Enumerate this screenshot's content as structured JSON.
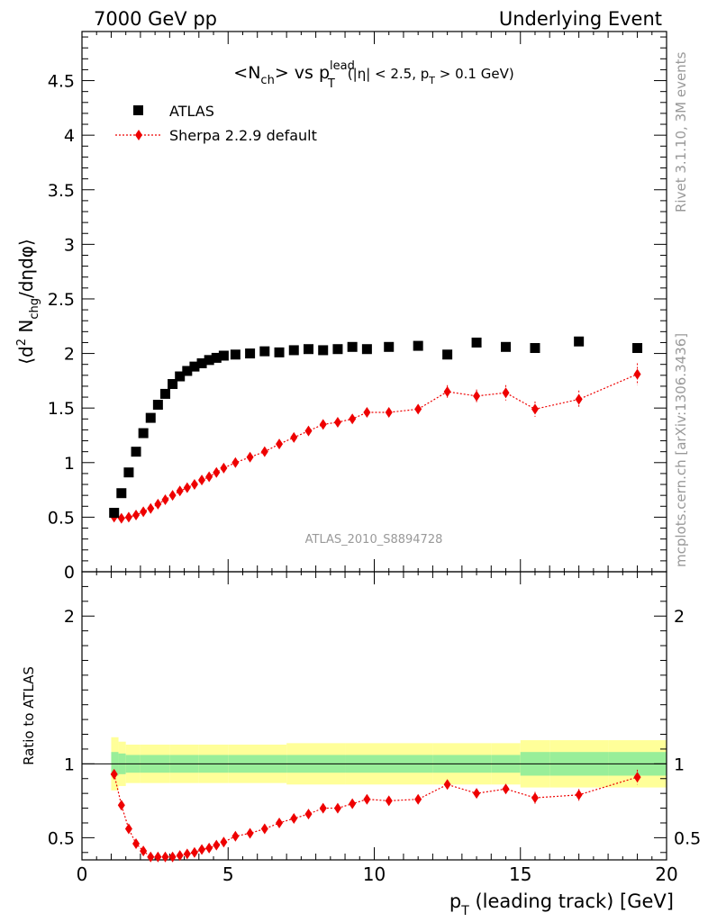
{
  "header": {
    "left": "7000 GeV pp",
    "right": "Underlying Event"
  },
  "side_text": {
    "rivet": "Rivet 3.1.10,  3M events",
    "mcplots": "mcplots.cern.ch [arXiv:1306.3436]"
  },
  "watermark": "ATLAS_2010_S8894728",
  "title": {
    "part1": "<N",
    "sub1": "ch",
    "part2": "> vs p",
    "sup2": "lead",
    "sub2": "T",
    "part3": "(|η| < 2.5, p",
    "sub3": "T",
    "part4": " > 0.1 GeV)"
  },
  "ylabel_main": {
    "p1": "⟨d",
    "sup": "2",
    "p2": " N",
    "sub": "chg",
    "p3": "/dηdφ⟩"
  },
  "ylabel_ratio": "Ratio to ATLAS",
  "xlabel": {
    "p1": "p",
    "sub": "T",
    "p2": " (leading track) [GeV]"
  },
  "legend": {
    "atlas": "ATLAS",
    "sherpa": "Sherpa 2.2.9 default"
  },
  "colors": {
    "data": "#000000",
    "mc": "#ee0000",
    "band_inner": "#99ee99",
    "band_outer": "#ffff99"
  },
  "chart_data": {
    "type": "scatter",
    "x_range": [
      0,
      20
    ],
    "x_ticks": [
      0,
      5,
      10,
      15,
      20
    ],
    "main": {
      "ylim": [
        0,
        4.95
      ],
      "y_ticks": [
        0,
        0.5,
        1,
        1.5,
        2,
        2.5,
        3,
        3.5,
        4,
        4.5
      ],
      "y_tick_labels": [
        "0",
        "0.5",
        "1",
        "1.5",
        "2",
        "2.5",
        "3",
        "3.5",
        "4",
        "4.5"
      ]
    },
    "ratio": {
      "ylim": [
        0.35,
        2.3
      ],
      "y_ticks": [
        0.5,
        1,
        2
      ],
      "y_tick_labels": [
        "0.5",
        "1",
        "2"
      ]
    },
    "series": [
      {
        "name": "ATLAS",
        "x": [
          1.1,
          1.35,
          1.6,
          1.85,
          2.1,
          2.35,
          2.6,
          2.85,
          3.1,
          3.35,
          3.6,
          3.85,
          4.1,
          4.35,
          4.6,
          4.85,
          5.25,
          5.75,
          6.25,
          6.75,
          7.25,
          7.75,
          8.25,
          8.75,
          9.25,
          9.75,
          10.5,
          11.5,
          12.5,
          13.5,
          14.5,
          15.5,
          17.0,
          19.0
        ],
        "y": [
          0.54,
          0.72,
          0.91,
          1.1,
          1.27,
          1.41,
          1.53,
          1.63,
          1.72,
          1.79,
          1.84,
          1.88,
          1.91,
          1.94,
          1.96,
          1.98,
          1.99,
          2.0,
          2.02,
          2.01,
          2.03,
          2.04,
          2.03,
          2.04,
          2.06,
          2.04,
          2.06,
          2.07,
          1.99,
          2.1,
          2.06,
          2.05,
          2.11,
          2.05
        ]
      },
      {
        "name": "Sherpa 2.2.9 default",
        "x": [
          1.1,
          1.35,
          1.6,
          1.85,
          2.1,
          2.35,
          2.6,
          2.85,
          3.1,
          3.35,
          3.6,
          3.85,
          4.1,
          4.35,
          4.6,
          4.85,
          5.25,
          5.75,
          6.25,
          6.75,
          7.25,
          7.75,
          8.25,
          8.75,
          9.25,
          9.75,
          10.5,
          11.5,
          12.5,
          13.5,
          14.5,
          15.5,
          17.0,
          19.0
        ],
        "y": [
          0.5,
          0.49,
          0.5,
          0.52,
          0.55,
          0.58,
          0.62,
          0.66,
          0.7,
          0.74,
          0.77,
          0.8,
          0.84,
          0.87,
          0.91,
          0.95,
          1.0,
          1.05,
          1.1,
          1.17,
          1.23,
          1.29,
          1.35,
          1.37,
          1.4,
          1.46,
          1.46,
          1.49,
          1.65,
          1.61,
          1.64,
          1.49,
          1.58,
          1.81
        ],
        "y_err": [
          0.01,
          0.01,
          0.01,
          0.01,
          0.01,
          0.01,
          0.01,
          0.01,
          0.01,
          0.01,
          0.01,
          0.01,
          0.01,
          0.01,
          0.01,
          0.01,
          0.01,
          0.01,
          0.02,
          0.02,
          0.02,
          0.02,
          0.02,
          0.03,
          0.03,
          0.04,
          0.03,
          0.04,
          0.06,
          0.06,
          0.07,
          0.07,
          0.08,
          0.1
        ],
        "ratio": [
          0.93,
          0.72,
          0.56,
          0.46,
          0.41,
          0.37,
          0.37,
          0.37,
          0.37,
          0.38,
          0.39,
          0.4,
          0.42,
          0.43,
          0.45,
          0.47,
          0.51,
          0.53,
          0.56,
          0.6,
          0.63,
          0.66,
          0.7,
          0.7,
          0.73,
          0.76,
          0.75,
          0.76,
          0.86,
          0.8,
          0.83,
          0.77,
          0.79,
          0.91
        ],
        "ratio_err": [
          0.02,
          0.01,
          0.01,
          0.01,
          0.01,
          0.01,
          0.01,
          0.01,
          0.01,
          0.01,
          0.01,
          0.01,
          0.01,
          0.01,
          0.01,
          0.01,
          0.01,
          0.01,
          0.01,
          0.01,
          0.01,
          0.01,
          0.01,
          0.01,
          0.02,
          0.02,
          0.02,
          0.02,
          0.03,
          0.03,
          0.03,
          0.04,
          0.04,
          0.05
        ]
      }
    ],
    "data_band": {
      "x_edges": [
        1.0,
        1.25,
        1.5,
        2.0,
        3.0,
        4.0,
        5.0,
        7.0,
        9.0,
        10.0,
        12.0,
        14.0,
        15.0,
        16.0,
        18.0,
        20.0
      ],
      "inner_half": [
        0.08,
        0.07,
        0.06,
        0.06,
        0.06,
        0.06,
        0.06,
        0.06,
        0.06,
        0.06,
        0.06,
        0.06,
        0.08,
        0.08,
        0.08
      ],
      "outer_half": [
        0.18,
        0.15,
        0.13,
        0.13,
        0.13,
        0.13,
        0.13,
        0.14,
        0.14,
        0.14,
        0.14,
        0.14,
        0.16,
        0.16,
        0.16
      ]
    }
  }
}
